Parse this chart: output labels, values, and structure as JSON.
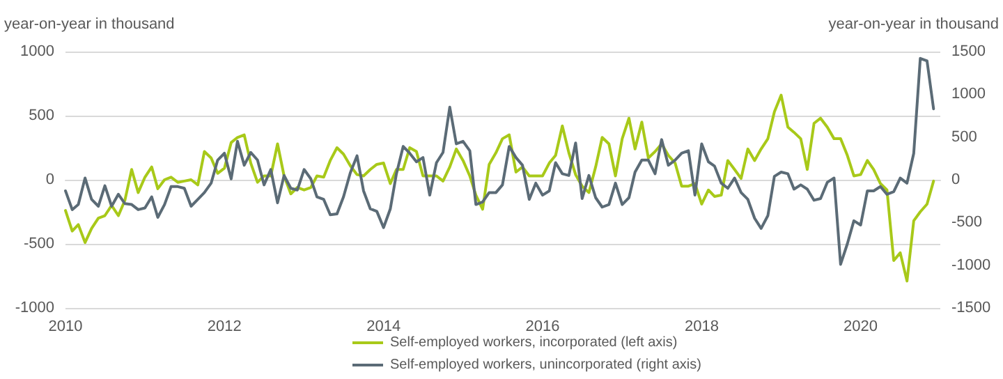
{
  "chart_data": {
    "type": "line",
    "ylabel": "year-on-year in thousand",
    "y2label": "year-on-year in thousand",
    "x": [
      "2010-01",
      "2010-02",
      "2010-03",
      "2010-04",
      "2010-05",
      "2010-06",
      "2010-07",
      "2010-08",
      "2010-09",
      "2010-10",
      "2010-11",
      "2010-12",
      "2011-01",
      "2011-02",
      "2011-03",
      "2011-04",
      "2011-05",
      "2011-06",
      "2011-07",
      "2011-08",
      "2011-09",
      "2011-10",
      "2011-11",
      "2011-12",
      "2012-01",
      "2012-02",
      "2012-03",
      "2012-04",
      "2012-05",
      "2012-06",
      "2012-07",
      "2012-08",
      "2012-09",
      "2012-10",
      "2012-11",
      "2012-12",
      "2013-01",
      "2013-02",
      "2013-03",
      "2013-04",
      "2013-05",
      "2013-06",
      "2013-07",
      "2013-08",
      "2013-09",
      "2013-10",
      "2013-11",
      "2013-12",
      "2014-01",
      "2014-02",
      "2014-03",
      "2014-04",
      "2014-05",
      "2014-06",
      "2014-07",
      "2014-08",
      "2014-09",
      "2014-10",
      "2014-11",
      "2014-12",
      "2015-01",
      "2015-02",
      "2015-03",
      "2015-04",
      "2015-05",
      "2015-06",
      "2015-07",
      "2015-08",
      "2015-09",
      "2015-10",
      "2015-11",
      "2015-12",
      "2016-01",
      "2016-02",
      "2016-03",
      "2016-04",
      "2016-05",
      "2016-06",
      "2016-07",
      "2016-08",
      "2016-09",
      "2016-10",
      "2016-11",
      "2016-12",
      "2017-01",
      "2017-02",
      "2017-03",
      "2017-04",
      "2017-05",
      "2017-06",
      "2017-07",
      "2017-08",
      "2017-09",
      "2017-10",
      "2017-11",
      "2017-12",
      "2018-01",
      "2018-02",
      "2018-03",
      "2018-04",
      "2018-05",
      "2018-06",
      "2018-07",
      "2018-08",
      "2018-09",
      "2018-10",
      "2018-11",
      "2018-12",
      "2019-01",
      "2019-02",
      "2019-03",
      "2019-04",
      "2019-05",
      "2019-06",
      "2019-07",
      "2019-08",
      "2019-09",
      "2019-10",
      "2019-11",
      "2019-12",
      "2020-01",
      "2020-02",
      "2020-03",
      "2020-04",
      "2020-05",
      "2020-06",
      "2020-07",
      "2020-08",
      "2020-09",
      "2020-10",
      "2020-11",
      "2020-12"
    ],
    "series": [
      {
        "name": "Self-employed workers, incorporated (left axis)",
        "color": "#a8c919",
        "values": [
          -240,
          -400,
          -350,
          -490,
          -380,
          -300,
          -280,
          -200,
          -280,
          -160,
          80,
          -100,
          20,
          100,
          -70,
          0,
          20,
          -20,
          -10,
          0,
          -40,
          220,
          170,
          50,
          90,
          290,
          330,
          350,
          130,
          -20,
          30,
          30,
          280,
          30,
          -110,
          -60,
          -80,
          -60,
          30,
          20,
          150,
          250,
          200,
          110,
          40,
          30,
          80,
          120,
          130,
          -30,
          80,
          80,
          250,
          220,
          30,
          30,
          30,
          -10,
          100,
          240,
          150,
          30,
          -120,
          -230,
          120,
          210,
          320,
          350,
          60,
          100,
          30,
          30,
          30,
          130,
          190,
          420,
          210,
          40,
          -50,
          -100,
          100,
          330,
          280,
          30,
          320,
          480,
          240,
          450,
          170,
          220,
          280,
          190,
          130,
          -50,
          -50,
          -30,
          -190,
          -80,
          -130,
          -120,
          150,
          80,
          10,
          240,
          150,
          240,
          320,
          530,
          660,
          410,
          370,
          320,
          80,
          440,
          480,
          410,
          320,
          320,
          190,
          30,
          40,
          150,
          80,
          -30,
          -80,
          -630,
          -570,
          -790,
          -320,
          -250,
          -190,
          -10
        ]
      },
      {
        "name": "Self-employed workers, unincorporated (right axis)",
        "color": "#5b6b76",
        "axis": "y2",
        "values": [
          -130,
          -350,
          -290,
          20,
          -230,
          -310,
          -70,
          -310,
          -170,
          -280,
          -290,
          -350,
          -330,
          -200,
          -440,
          -290,
          -80,
          -80,
          -100,
          -310,
          -230,
          -150,
          -40,
          230,
          310,
          10,
          450,
          170,
          320,
          230,
          -60,
          120,
          -270,
          50,
          -100,
          -120,
          120,
          10,
          -200,
          -230,
          -410,
          -400,
          -200,
          80,
          280,
          -130,
          -340,
          -370,
          -560,
          -340,
          70,
          390,
          310,
          210,
          260,
          -180,
          200,
          320,
          850,
          420,
          450,
          340,
          -290,
          -260,
          -150,
          -150,
          -60,
          390,
          260,
          170,
          -230,
          -40,
          -180,
          -130,
          200,
          70,
          50,
          430,
          -220,
          50,
          -210,
          -320,
          -290,
          -40,
          -290,
          -210,
          90,
          230,
          230,
          70,
          470,
          170,
          230,
          310,
          340,
          -180,
          420,
          210,
          160,
          -40,
          -100,
          20,
          -150,
          -230,
          -450,
          -570,
          -420,
          40,
          90,
          70,
          -110,
          -60,
          -110,
          -240,
          -220,
          -30,
          20,
          -990,
          -750,
          -480,
          -530,
          -130,
          -130,
          -80,
          -170,
          -140,
          20,
          -40,
          310,
          1420,
          1390,
          830
        ]
      }
    ],
    "xlim": [
      "2010-01",
      "2021-01"
    ],
    "xticks": [
      {
        "value": "2010-01",
        "label": "2010"
      },
      {
        "value": "2012-01",
        "label": "2012"
      },
      {
        "value": "2014-01",
        "label": "2014"
      },
      {
        "value": "2016-01",
        "label": "2016"
      },
      {
        "value": "2018-01",
        "label": "2018"
      },
      {
        "value": "2020-01",
        "label": "2020"
      }
    ],
    "ylim": [
      -1000,
      1000
    ],
    "yticks": [
      -1000,
      -500,
      0,
      500,
      1000
    ],
    "y2lim": [
      -1500,
      1500
    ],
    "y2ticks": [
      -1500,
      -1000,
      -500,
      0,
      500,
      1000,
      1500
    ],
    "grid": "y",
    "legend": "bottom",
    "marker": "none",
    "line_style": "solid"
  }
}
